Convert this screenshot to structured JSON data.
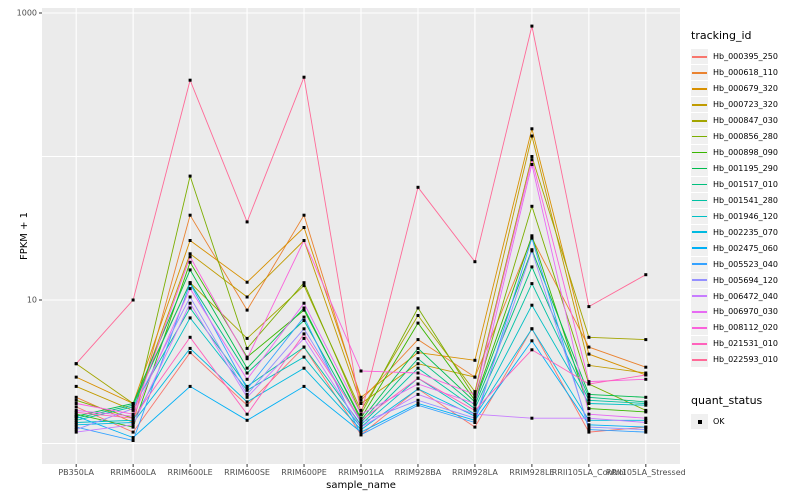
{
  "chart_data": {
    "type": "line",
    "title": "",
    "xlabel": "sample_name",
    "ylabel": "FPKM + 1",
    "y_scale": "log10",
    "ylim": [
      1,
      1000
    ],
    "grid": true,
    "panel_bg": "#EBEBEB",
    "grid_color": "#FFFFFF",
    "axis_text_color": "#4D4D4D",
    "marker_color": "#000000",
    "y_ticks": [
      {
        "label": "1000",
        "value": 1000
      },
      {
        "label": "10",
        "value": 10
      }
    ],
    "y_minor_gridlines": [
      100,
      1
    ],
    "categories": [
      "PB350LA",
      "RRIM600LA",
      "RRIM600LE",
      "RRIM600SE",
      "RRIM600PE",
      "RRIM901LA",
      "RRIM928BA",
      "RRIM928LA",
      "RRIM928LE",
      "RRII105LA_Control",
      "RRII105LA_Stressed"
    ],
    "legend": {
      "title": "tracking_id",
      "position": "right"
    },
    "quant_legend": {
      "title": "quant_status",
      "items": [
        {
          "label": "OK",
          "marker": "black-square"
        }
      ]
    },
    "series": [
      {
        "name": "Hb_000395_250",
        "color": "#F8766D",
        "values": [
          1.8,
          1.2,
          4.3,
          1.85,
          4.7,
          1.15,
          2.4,
          1.3,
          6.3,
          1.2,
          1.3
        ]
      },
      {
        "name": "Hb_000618_110",
        "color": "#EA8331",
        "values": [
          2.1,
          1.4,
          39,
          8.5,
          39,
          2.0,
          5.3,
          2.9,
          27,
          4.7,
          3.4
        ]
      },
      {
        "name": "Hb_000679_320",
        "color": "#D89000",
        "values": [
          2.9,
          1.9,
          26,
          13.3,
          32,
          2.1,
          4.3,
          3.8,
          156,
          4.2,
          3.0
        ]
      },
      {
        "name": "Hb_000723_320",
        "color": "#C09B00",
        "values": [
          2.5,
          1.7,
          21,
          10.5,
          26,
          1.9,
          3.6,
          2.9,
          139,
          3.5,
          3.1
        ]
      },
      {
        "name": "Hb_000847_030",
        "color": "#A3A500",
        "values": [
          3.6,
          1.9,
          13.2,
          5.4,
          12.6,
          1.7,
          7.8,
          2.3,
          100,
          5.5,
          5.3
        ]
      },
      {
        "name": "Hb_000856_280",
        "color": "#7CAE00",
        "values": [
          2.0,
          1.5,
          73,
          4.6,
          13.2,
          1.6,
          8.8,
          2.1,
          45,
          2.6,
          1.7
        ]
      },
      {
        "name": "Hb_000898_090",
        "color": "#39B600",
        "values": [
          1.6,
          1.3,
          18.3,
          4.0,
          8.5,
          1.5,
          6.9,
          2.0,
          28,
          1.75,
          1.66
        ]
      },
      {
        "name": "Hb_001195_290",
        "color": "#00BB4E",
        "values": [
          1.55,
          1.9,
          16.2,
          3.35,
          8.8,
          1.45,
          4.6,
          1.95,
          22.4,
          2.2,
          2.1
        ]
      },
      {
        "name": "Hb_001517_010",
        "color": "#00BF7D",
        "values": [
          1.5,
          1.85,
          13.2,
          3.1,
          7.2,
          1.4,
          3.9,
          1.85,
          17,
          2.1,
          1.95
        ]
      },
      {
        "name": "Hb_001541_280",
        "color": "#00C1A3",
        "values": [
          1.45,
          1.8,
          8.8,
          2.5,
          4.7,
          1.35,
          3.35,
          1.75,
          13,
          2.0,
          1.9
        ]
      },
      {
        "name": "Hb_001946_120",
        "color": "#00BFC4",
        "values": [
          1.4,
          1.45,
          7.5,
          2.35,
          4.0,
          1.3,
          2.85,
          1.6,
          9.2,
          1.9,
          1.85
        ]
      },
      {
        "name": "Hb_002235_070",
        "color": "#00BAE0",
        "values": [
          1.35,
          1.4,
          4.6,
          1.95,
          3.35,
          1.25,
          2.4,
          1.55,
          6.3,
          1.45,
          1.45
        ]
      },
      {
        "name": "Hb_002475_060",
        "color": "#00B0F6",
        "values": [
          1.55,
          1.1,
          2.5,
          1.45,
          2.5,
          1.2,
          1.9,
          1.45,
          5.2,
          1.35,
          1.3
        ]
      },
      {
        "name": "Hb_005523_040",
        "color": "#35A2FF",
        "values": [
          1.3,
          1.05,
          13,
          2.4,
          7.6,
          1.15,
          1.85,
          1.4,
          27,
          1.25,
          1.2
        ]
      },
      {
        "name": "Hb_005694_120",
        "color": "#9590FF",
        "values": [
          1.25,
          1.75,
          10.5,
          2.2,
          6.3,
          1.4,
          2.0,
          1.5,
          22,
          1.3,
          1.25
        ]
      },
      {
        "name": "Hb_006472_040",
        "color": "#C77CFF",
        "values": [
          1.2,
          1.35,
          9.5,
          2.1,
          5.4,
          1.3,
          2.2,
          1.6,
          1.5,
          1.5,
          1.4
        ]
      },
      {
        "name": "Hb_006970_030",
        "color": "#E76BF3",
        "values": [
          1.7,
          1.55,
          12,
          2.8,
          9.5,
          1.6,
          2.6,
          1.9,
          88,
          1.6,
          1.5
        ]
      },
      {
        "name": "Hb_008112_020",
        "color": "#FA62DB",
        "values": [
          1.9,
          1.6,
          20,
          3.9,
          26,
          3.2,
          3.1,
          2.2,
          95,
          2.7,
          2.8
        ]
      },
      {
        "name": "Hb_021531_010",
        "color": "#FF62BC",
        "values": [
          1.65,
          1.5,
          5.5,
          1.6,
          5.8,
          1.45,
          2.85,
          1.7,
          4.5,
          2.6,
          3.0
        ]
      },
      {
        "name": "Hb_022593_010",
        "color": "#FF6A98",
        "values": [
          3.6,
          10,
          340,
          35,
          357,
          1.6,
          61,
          18.5,
          810,
          9,
          15
        ]
      }
    ]
  }
}
